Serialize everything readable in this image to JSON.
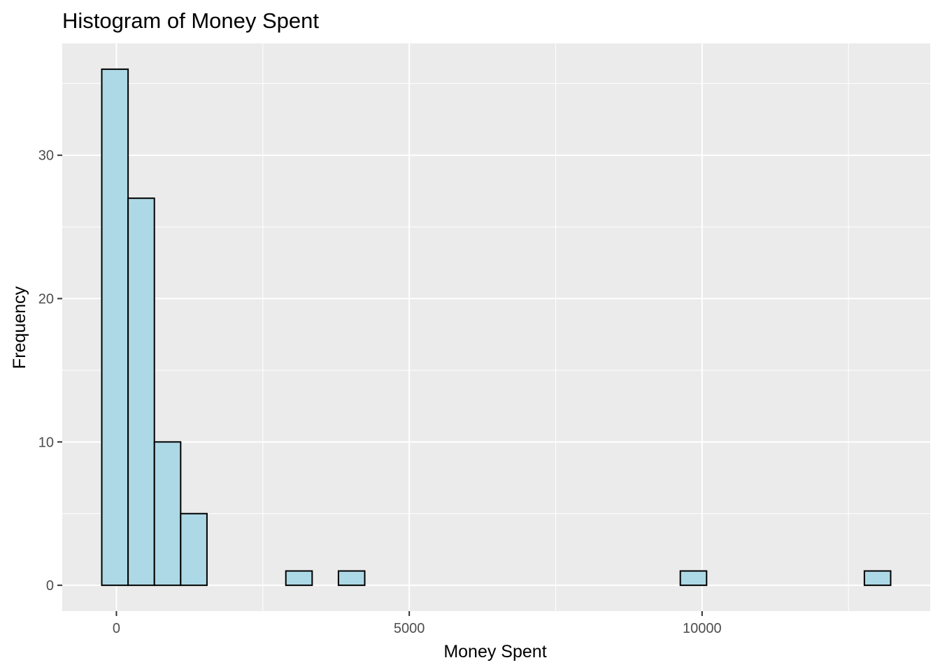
{
  "chart_data": {
    "type": "bar",
    "title": "Histogram of Money Spent",
    "xlabel": "Money Spent",
    "ylabel": "Frequency",
    "bin_width": 449,
    "bins": [
      {
        "start": -250,
        "end": 199,
        "count": 36
      },
      {
        "start": 199,
        "end": 648,
        "count": 27
      },
      {
        "start": 648,
        "end": 1097,
        "count": 10
      },
      {
        "start": 1097,
        "end": 1546,
        "count": 5
      },
      {
        "start": 1546,
        "end": 1995,
        "count": 0
      },
      {
        "start": 1995,
        "end": 2444,
        "count": 0
      },
      {
        "start": 2444,
        "end": 2893,
        "count": 0
      },
      {
        "start": 2893,
        "end": 3342,
        "count": 1
      },
      {
        "start": 3342,
        "end": 3791,
        "count": 0
      },
      {
        "start": 3791,
        "end": 4240,
        "count": 1
      },
      {
        "start": 4240,
        "end": 4689,
        "count": 0
      },
      {
        "start": 4689,
        "end": 5138,
        "count": 0
      },
      {
        "start": 5138,
        "end": 5587,
        "count": 0
      },
      {
        "start": 5587,
        "end": 6036,
        "count": 0
      },
      {
        "start": 6036,
        "end": 6485,
        "count": 0
      },
      {
        "start": 6485,
        "end": 6934,
        "count": 0
      },
      {
        "start": 6934,
        "end": 7383,
        "count": 0
      },
      {
        "start": 7383,
        "end": 7832,
        "count": 0
      },
      {
        "start": 7832,
        "end": 8281,
        "count": 0
      },
      {
        "start": 8281,
        "end": 8730,
        "count": 0
      },
      {
        "start": 8730,
        "end": 9179,
        "count": 0
      },
      {
        "start": 9179,
        "end": 9628,
        "count": 0
      },
      {
        "start": 9628,
        "end": 10077,
        "count": 1
      },
      {
        "start": 10077,
        "end": 10526,
        "count": 0
      },
      {
        "start": 10526,
        "end": 10975,
        "count": 0
      },
      {
        "start": 10975,
        "end": 11424,
        "count": 0
      },
      {
        "start": 11424,
        "end": 11873,
        "count": 0
      },
      {
        "start": 11873,
        "end": 12322,
        "count": 0
      },
      {
        "start": 12322,
        "end": 12771,
        "count": 0
      },
      {
        "start": 12771,
        "end": 13220,
        "count": 1
      }
    ],
    "xlim": [
      -925,
      13895
    ],
    "ylim": [
      -1.8,
      37.8
    ],
    "x_ticks": [
      0,
      5000,
      10000
    ],
    "x_tick_labels": [
      "0",
      "5000",
      "10000"
    ],
    "x_minor_ticks": [
      2500,
      7500,
      12500
    ],
    "y_ticks": [
      0,
      10,
      20,
      30
    ],
    "y_tick_labels": [
      "0",
      "10",
      "20",
      "30"
    ],
    "y_minor_ticks": [
      5,
      15,
      25,
      35
    ],
    "grid": true,
    "legend": "none",
    "colors": {
      "bar_fill": "#add8e6",
      "bar_outline": "#000000",
      "panel_background": "#ebebeb",
      "grid": "#ffffff",
      "tick_label": "#4d4d4d"
    }
  }
}
